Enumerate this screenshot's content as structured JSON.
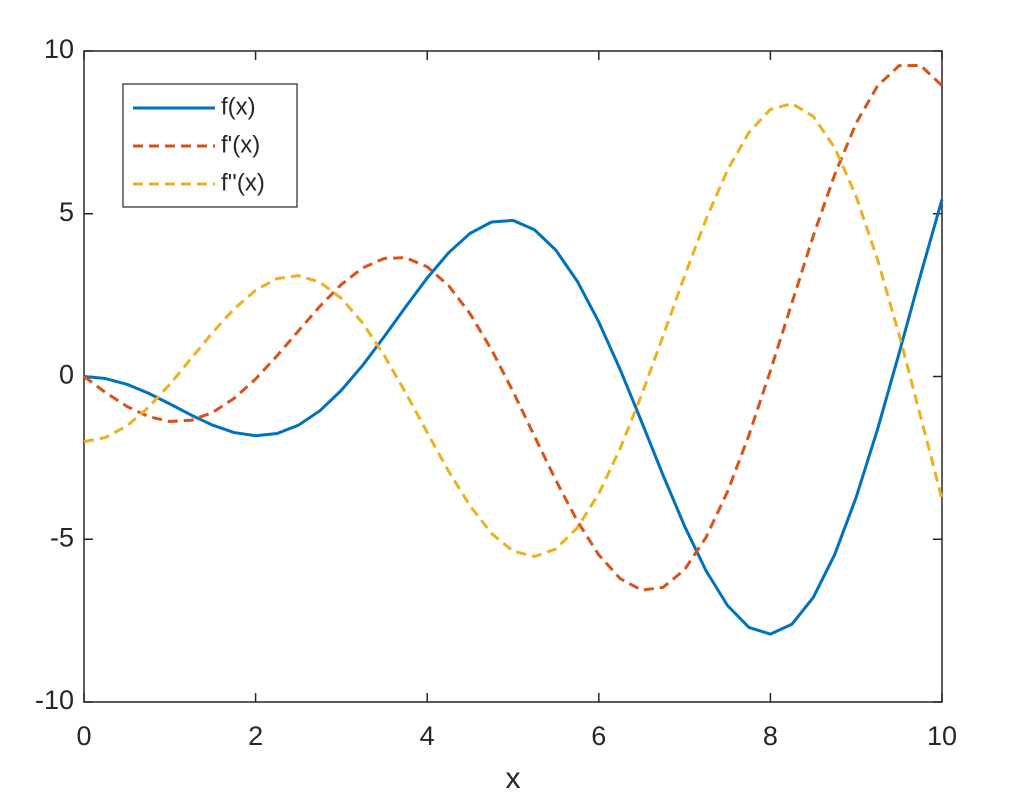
{
  "chart_data": {
    "type": "line",
    "xlabel": "x",
    "x": [
      0,
      0.25,
      0.5,
      0.75,
      1,
      1.25,
      1.5,
      1.75,
      2,
      2.25,
      2.5,
      2.75,
      3,
      3.25,
      3.5,
      3.75,
      4,
      4.25,
      4.5,
      4.75,
      5,
      5.25,
      5.5,
      5.75,
      6,
      6.25,
      6.5,
      6.75,
      7,
      7.25,
      7.5,
      7.75,
      8,
      8.25,
      8.5,
      8.75,
      9,
      9.25,
      9.5,
      9.75,
      10
    ],
    "series": [
      {
        "name": "f(x)",
        "color": "#0072bd",
        "style": "solid",
        "values": [
          0,
          -0.062,
          -0.24,
          -0.511,
          -0.841,
          -1.186,
          -1.496,
          -1.722,
          -1.819,
          -1.751,
          -1.496,
          -1.05,
          -0.423,
          0.352,
          1.228,
          2.144,
          3.027,
          3.804,
          4.399,
          4.747,
          4.795,
          4.509,
          3.88,
          2.923,
          1.676,
          0.208,
          -1.398,
          -3.038,
          -4.599,
          -5.967,
          -7.035,
          -7.708,
          -7.915,
          -7.613,
          -6.787,
          -5.466,
          -3.709,
          -1.612,
          0.714,
          3.119,
          5.44
        ]
      },
      {
        "name": "f'(x)",
        "color": "#d95319",
        "style": "dashed",
        "values": [
          0,
          -0.49,
          -0.918,
          -1.23,
          -1.382,
          -1.343,
          -1.104,
          -0.672,
          -0.077,
          0.635,
          1.404,
          2.16,
          2.829,
          3.339,
          3.629,
          3.649,
          3.371,
          2.791,
          1.926,
          0.821,
          -0.46,
          -1.83,
          -3.192,
          -4.444,
          -5.482,
          -6.213,
          -6.563,
          -6.478,
          -5.934,
          -4.94,
          -3.538,
          -1.802,
          0.175,
          2.256,
          4.319,
          6.207,
          7.788,
          8.934,
          9.549,
          9.557,
          8.935
        ]
      },
      {
        "name": "f''(x)",
        "color": "#edb120",
        "style": "dashed",
        "values": [
          -2,
          -1.876,
          -1.516,
          -0.952,
          -0.239,
          0.556,
          1.355,
          2.078,
          2.651,
          3.007,
          3.099,
          2.898,
          2.403,
          1.637,
          0.645,
          -0.502,
          -1.72,
          -2.912,
          -3.977,
          -4.822,
          -5.362,
          -5.533,
          -5.298,
          -4.645,
          -3.597,
          -2.206,
          -0.555,
          1.252,
          3.091,
          4.832,
          6.342,
          7.5,
          8.206,
          8.384,
          7.991,
          7.028,
          5.531,
          3.582,
          1.28,
          -1.224,
          -3.762
        ]
      }
    ],
    "xlim": [
      0,
      10
    ],
    "xticks": [
      0,
      2,
      4,
      6,
      8,
      10
    ],
    "ylim": [
      -10,
      10
    ],
    "yticks": [
      -10,
      -5,
      0,
      5,
      10
    ],
    "legend": "upper left",
    "grid": false
  }
}
